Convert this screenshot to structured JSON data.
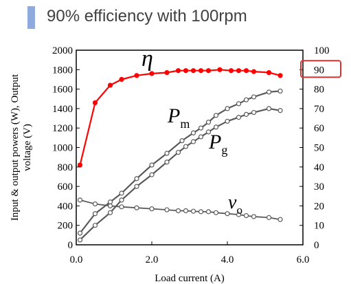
{
  "header": {
    "title": "90% efficiency with 100rpm"
  },
  "colors": {
    "accent_bar": "#8faadc",
    "efficiency": "#ff0000",
    "power": "#595959",
    "highlight_box": "#e03030"
  },
  "chart_data": {
    "type": "line",
    "xlabel": "Load current  (A)",
    "ylabel_lines": [
      "Input & output powers (W), Output",
      "voltage (V)"
    ],
    "xlim": [
      0,
      6
    ],
    "ylim": [
      0,
      2000
    ],
    "y2lim": [
      0,
      100
    ],
    "xticks": [
      "0.0",
      "2.0",
      "4.0",
      "6.0"
    ],
    "yticks": [
      "0",
      "200",
      "400",
      "600",
      "800",
      "1000",
      "1200",
      "1400",
      "1600",
      "1800",
      "2000"
    ],
    "y2ticks": [
      "0",
      "10",
      "20",
      "30",
      "40",
      "50",
      "60",
      "70",
      "80",
      "90",
      "100"
    ],
    "highlighted_tick": "90",
    "series": [
      {
        "name": "η",
        "axis": "right",
        "x": [
          0.1,
          0.5,
          0.9,
          1.2,
          1.6,
          2.0,
          2.4,
          2.7,
          2.9,
          3.1,
          3.3,
          3.5,
          3.8,
          4.1,
          4.3,
          4.5,
          4.7,
          5.1,
          5.4
        ],
        "y": [
          41,
          73,
          82,
          85,
          87,
          88,
          88.5,
          89.5,
          89.5,
          89.5,
          89.5,
          89.5,
          90,
          89.5,
          89.5,
          89.5,
          89,
          88.5,
          87
        ]
      },
      {
        "name": "P",
        "subscript": "m",
        "axis": "left",
        "x": [
          0.1,
          0.5,
          0.9,
          1.2,
          1.6,
          2.0,
          2.4,
          2.8,
          3.1,
          3.3,
          3.5,
          3.7,
          4.0,
          4.3,
          4.5,
          4.7,
          5.1,
          5.4
        ],
        "y": [
          120,
          320,
          440,
          530,
          680,
          820,
          940,
          1070,
          1150,
          1200,
          1260,
          1330,
          1400,
          1450,
          1490,
          1520,
          1570,
          1580
        ]
      },
      {
        "name": "P",
        "subscript": "g",
        "axis": "left",
        "x": [
          0.1,
          0.5,
          0.9,
          1.2,
          1.6,
          2.0,
          2.4,
          2.7,
          2.9,
          3.1,
          3.3,
          3.5,
          3.7,
          4.0,
          4.3,
          4.5,
          4.7,
          5.1,
          5.4
        ],
        "y": [
          50,
          200,
          330,
          460,
          600,
          720,
          850,
          950,
          1010,
          1060,
          1110,
          1160,
          1210,
          1270,
          1310,
          1340,
          1360,
          1400,
          1380
        ]
      },
      {
        "name": "v",
        "subscript": "o",
        "axis": "left",
        "x": [
          0.1,
          0.5,
          0.9,
          1.2,
          1.6,
          2.0,
          2.4,
          2.7,
          2.9,
          3.1,
          3.3,
          3.5,
          3.7,
          4.0,
          4.3,
          4.5,
          4.7,
          5.1,
          5.4
        ],
        "y": [
          460,
          420,
          400,
          390,
          380,
          370,
          360,
          350,
          350,
          345,
          340,
          340,
          330,
          320,
          310,
          300,
          290,
          280,
          260
        ]
      }
    ]
  }
}
